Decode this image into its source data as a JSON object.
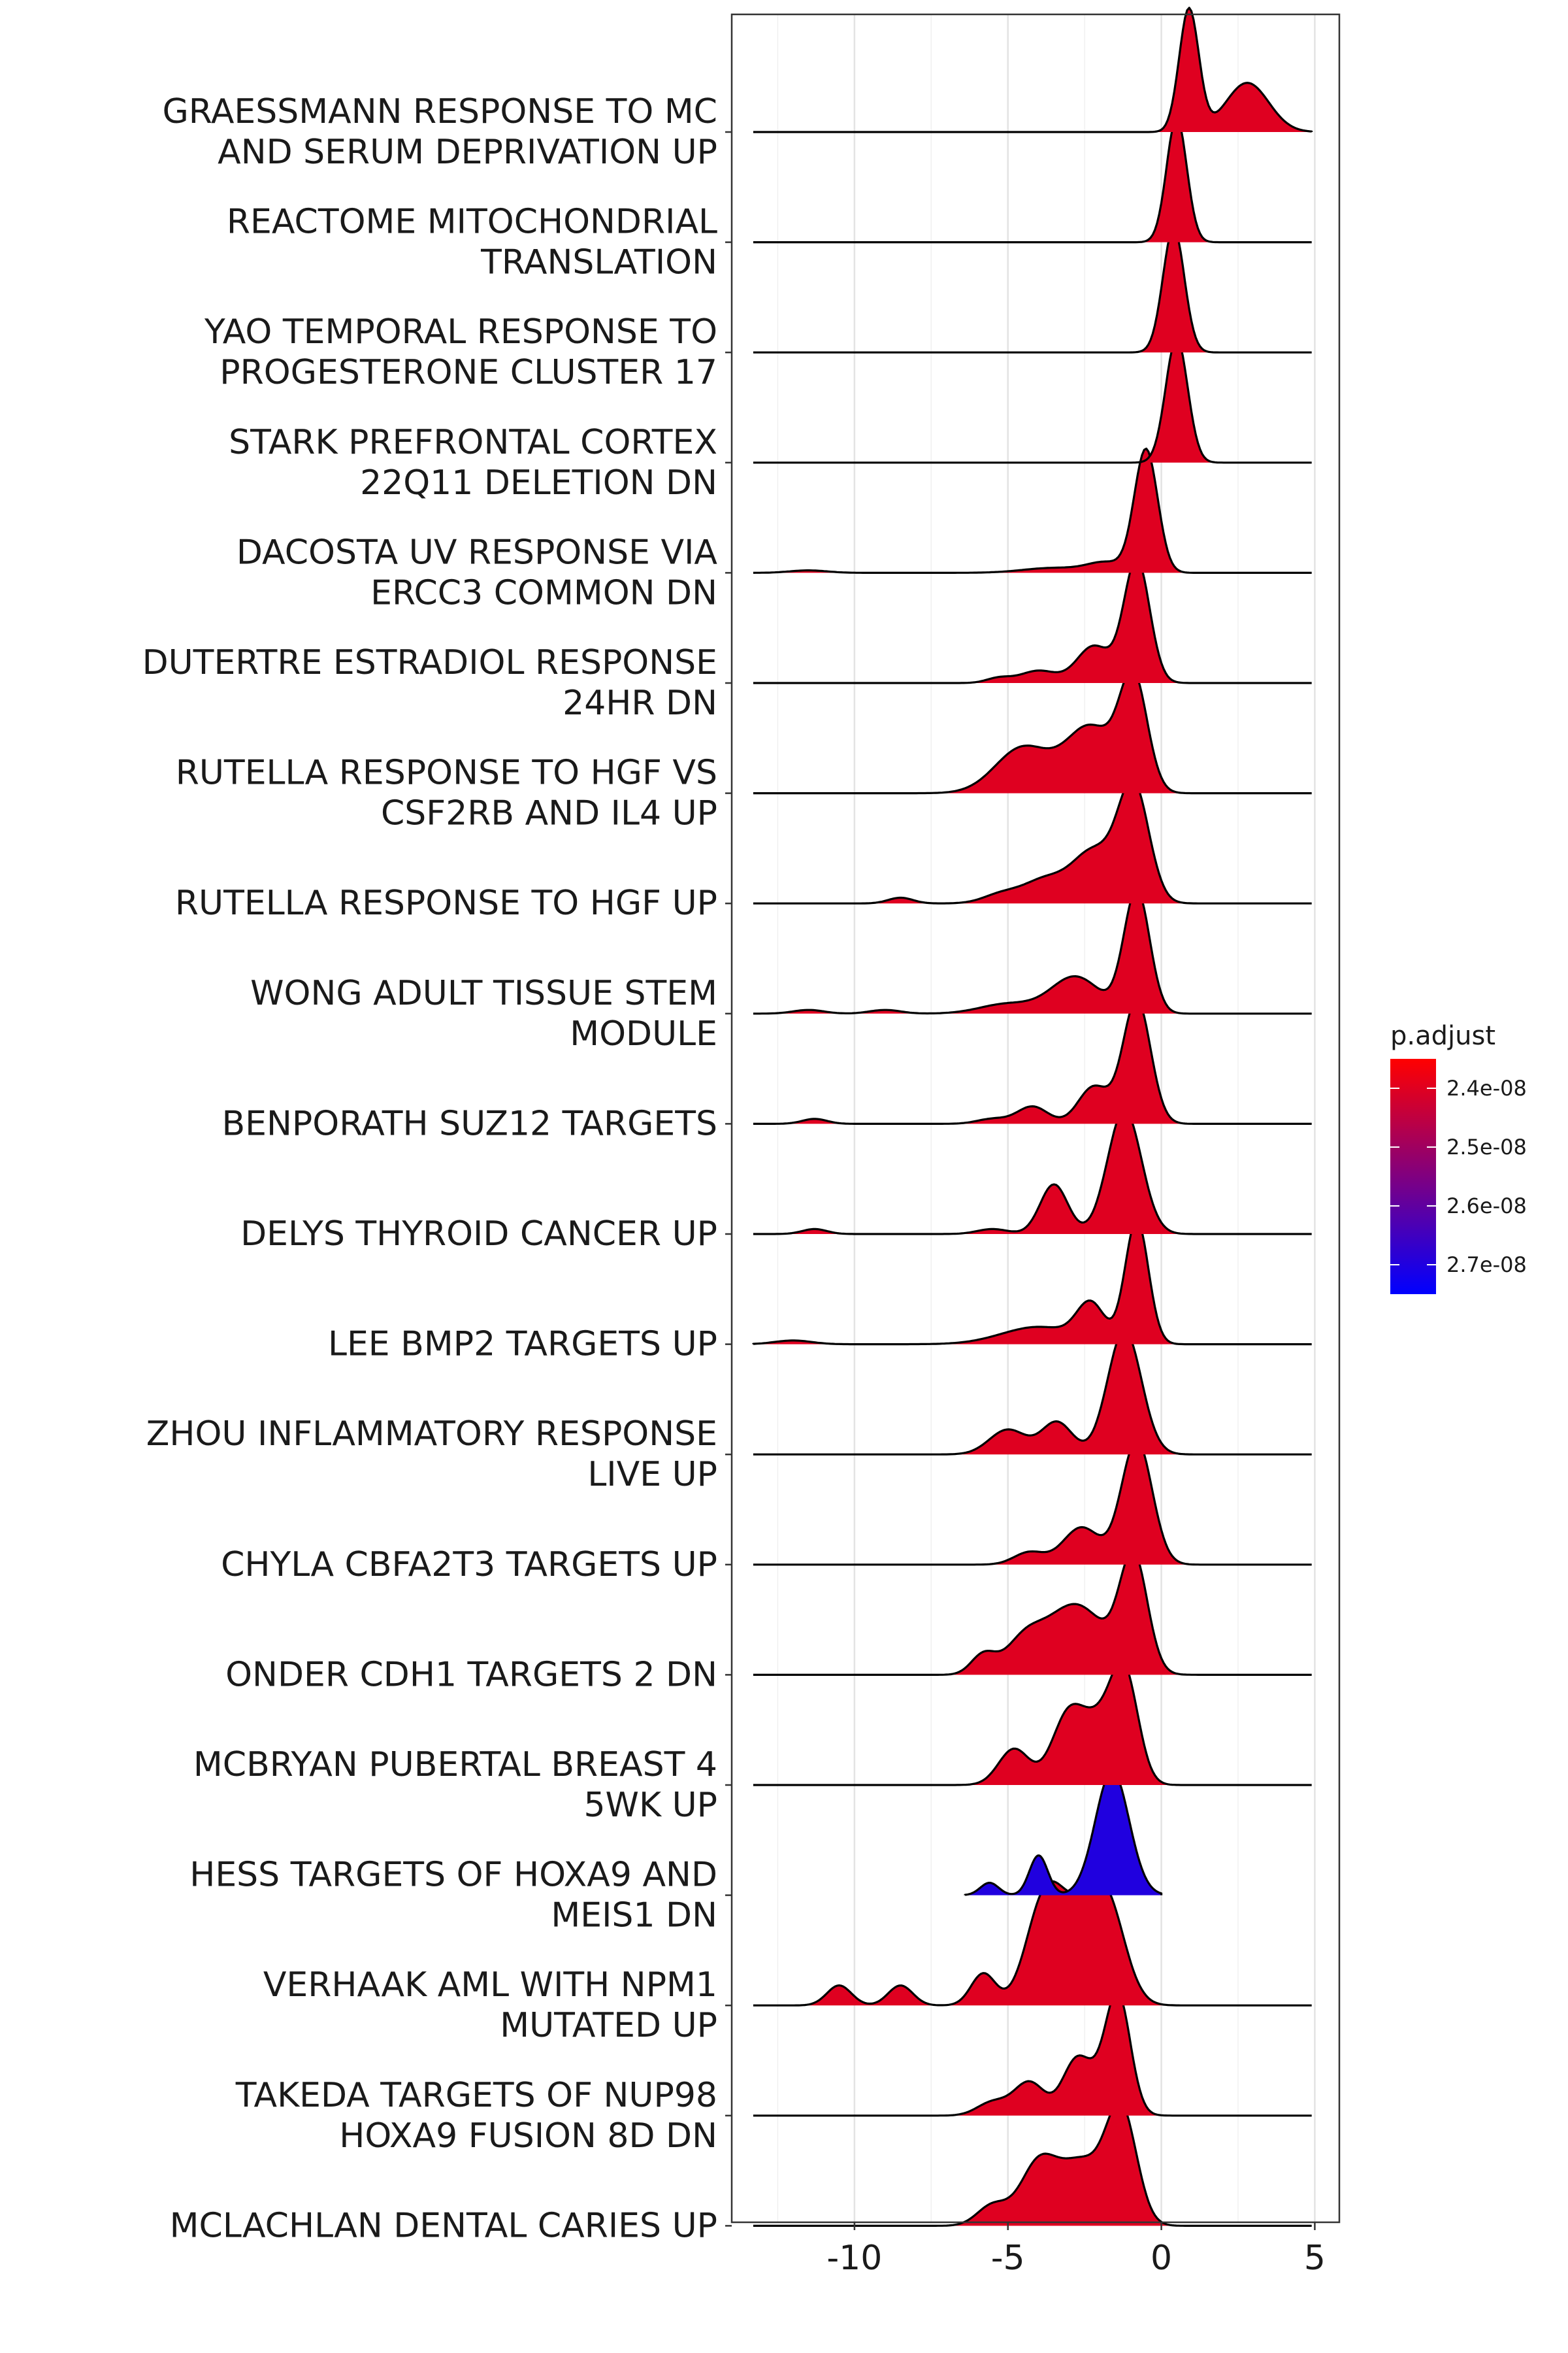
{
  "chart_data": {
    "type": "ridgeline",
    "xlim": [
      -14,
      5.8
    ],
    "x_ticks": [
      -10,
      -5,
      0,
      5
    ],
    "x_tick_labels": [
      "-10",
      "-5",
      "0",
      "5"
    ],
    "grid": "on",
    "legend": {
      "title": "p.adjust",
      "placement": "right",
      "range": [
        2.35e-08,
        2.75e-08
      ],
      "ticks": [
        2.4e-08,
        2.5e-08,
        2.6e-08,
        2.7e-08
      ],
      "tick_labels": [
        "2.4e-08",
        "2.5e-08",
        "2.6e-08",
        "2.7e-08"
      ],
      "colors": {
        "low": "#FF0000",
        "high": "#0000FF"
      }
    },
    "series": [
      {
        "label": "GRAESSMANN RESPONSE TO MC AND SERUM DEPRIVATION UP",
        "p_adjust": 2.4e-08,
        "x_min": -13.3,
        "x_max": 4.9,
        "peaks": [
          [
            0.9,
            0.32,
            1.0
          ],
          [
            2.8,
            0.7,
            0.4
          ]
        ]
      },
      {
        "label": "REACTOME MITOCHONDRIAL TRANSLATION",
        "p_adjust": 2.4e-08,
        "x_min": -13.3,
        "x_max": 4.9,
        "peaks": [
          [
            0.5,
            0.33,
            1.0
          ]
        ]
      },
      {
        "label": "YAO TEMPORAL RESPONSE TO PROGESTERONE CLUSTER 17",
        "p_adjust": 2.4e-08,
        "x_min": -13.3,
        "x_max": 4.9,
        "peaks": [
          [
            0.4,
            0.35,
            1.0
          ]
        ]
      },
      {
        "label": "STARK PREFRONTAL CORTEX 22Q11 DELETION DN",
        "p_adjust": 2.4e-08,
        "x_min": -13.3,
        "x_max": 4.9,
        "peaks": [
          [
            0.5,
            0.36,
            1.0
          ]
        ]
      },
      {
        "label": "DACOSTA UV RESPONSE VIA ERCC3 COMMON DN",
        "p_adjust": 2.4e-08,
        "x_min": -13.3,
        "x_max": 4.9,
        "peaks": [
          [
            -0.5,
            0.38,
            1.0
          ],
          [
            -1.8,
            0.6,
            0.08
          ],
          [
            -3.5,
            1.0,
            0.04
          ],
          [
            -11.5,
            0.6,
            0.02
          ]
        ]
      },
      {
        "label": "DUTERTRE ESTRADIOL RESPONSE 24HR DN",
        "p_adjust": 2.4e-08,
        "x_min": -13.3,
        "x_max": 4.9,
        "peaks": [
          [
            -0.8,
            0.42,
            1.0
          ],
          [
            -2.2,
            0.55,
            0.3
          ],
          [
            -4.0,
            0.6,
            0.1
          ],
          [
            -5.3,
            0.4,
            0.04
          ]
        ]
      },
      {
        "label": "RUTELLA RESPONSE TO HGF VS CSF2RB AND IL4 UP",
        "p_adjust": 2.4e-08,
        "x_min": -13.3,
        "x_max": 4.9,
        "peaks": [
          [
            -0.9,
            0.45,
            1.0
          ],
          [
            -2.3,
            0.8,
            0.6
          ],
          [
            -4.5,
            0.9,
            0.42
          ]
        ]
      },
      {
        "label": "RUTELLA RESPONSE TO HGF UP",
        "p_adjust": 2.4e-08,
        "x_min": -13.3,
        "x_max": 4.9,
        "peaks": [
          [
            -0.9,
            0.5,
            1.0
          ],
          [
            -2.2,
            0.7,
            0.45
          ],
          [
            -3.8,
            0.7,
            0.2
          ],
          [
            -5.2,
            0.6,
            0.08
          ],
          [
            -8.5,
            0.4,
            0.05
          ]
        ]
      },
      {
        "label": "WONG ADULT TISSUE STEM MODULE",
        "p_adjust": 2.4e-08,
        "x_min": -13.3,
        "x_max": 4.9,
        "peaks": [
          [
            -0.8,
            0.42,
            1.0
          ],
          [
            -2.8,
            0.8,
            0.3
          ],
          [
            -5.0,
            0.9,
            0.08
          ],
          [
            -9.0,
            0.5,
            0.03
          ],
          [
            -11.5,
            0.5,
            0.03
          ]
        ]
      },
      {
        "label": "BENPORATH SUZ12 TARGETS",
        "p_adjust": 2.4e-08,
        "x_min": -13.3,
        "x_max": 4.9,
        "peaks": [
          [
            -0.8,
            0.45,
            1.0
          ],
          [
            -2.2,
            0.5,
            0.3
          ],
          [
            -4.2,
            0.5,
            0.14
          ],
          [
            -5.5,
            0.5,
            0.04
          ],
          [
            -11.3,
            0.4,
            0.04
          ]
        ]
      },
      {
        "label": "DELYS THYROID CANCER UP",
        "p_adjust": 2.4e-08,
        "x_min": -13.3,
        "x_max": 4.9,
        "peaks": [
          [
            -1.2,
            0.55,
            1.0
          ],
          [
            -3.5,
            0.45,
            0.4
          ],
          [
            -5.5,
            0.5,
            0.04
          ],
          [
            -11.3,
            0.4,
            0.04
          ]
        ]
      },
      {
        "label": "LEE BMP2 TARGETS UP",
        "p_adjust": 2.4e-08,
        "x_min": -13.3,
        "x_max": 4.9,
        "peaks": [
          [
            -0.8,
            0.38,
            1.0
          ],
          [
            -2.3,
            0.45,
            0.3
          ],
          [
            -4.0,
            1.2,
            0.14
          ],
          [
            -12.0,
            0.6,
            0.03
          ]
        ]
      },
      {
        "label": "ZHOU INFLAMMATORY RESPONSE LIVE UP",
        "p_adjust": 2.4e-08,
        "x_min": -13.3,
        "x_max": 4.9,
        "peaks": [
          [
            -1.2,
            0.55,
            1.0
          ],
          [
            -3.4,
            0.5,
            0.26
          ],
          [
            -5.0,
            0.6,
            0.2
          ]
        ]
      },
      {
        "label": "CHYLA CBFA2T3 TARGETS UP",
        "p_adjust": 2.4e-08,
        "x_min": -13.3,
        "x_max": 4.9,
        "peaks": [
          [
            -0.8,
            0.5,
            1.0
          ],
          [
            -2.6,
            0.6,
            0.3
          ],
          [
            -4.3,
            0.5,
            0.1
          ]
        ]
      },
      {
        "label": "ONDER CDH1 TARGETS 2 DN",
        "p_adjust": 2.4e-08,
        "x_min": -13.3,
        "x_max": 4.9,
        "peaks": [
          [
            -0.9,
            0.45,
            0.8
          ],
          [
            -2.8,
            1.0,
            0.5
          ],
          [
            -4.5,
            0.6,
            0.2
          ],
          [
            -5.8,
            0.4,
            0.14
          ]
        ]
      },
      {
        "label": "MCBRYAN PUBERTAL BREAST 4 5WK UP",
        "p_adjust": 2.4e-08,
        "x_min": -13.3,
        "x_max": 4.9,
        "peaks": [
          [
            -1.2,
            0.45,
            0.9
          ],
          [
            -3.0,
            0.55,
            0.6
          ],
          [
            -2.0,
            0.5,
            0.4
          ],
          [
            -4.8,
            0.5,
            0.3
          ]
        ]
      },
      {
        "label": "HESS TARGETS OF HOXA9 AND MEIS1 DN",
        "p_adjust": 2.7e-08,
        "x_min": -6.4,
        "x_max": 0.0,
        "peaks": [
          [
            -1.6,
            0.55,
            1.0
          ],
          [
            -4.0,
            0.3,
            0.32
          ],
          [
            -5.6,
            0.3,
            0.1
          ]
        ]
      },
      {
        "label": "VERHAAK AML WITH NPM1 MUTATED UP",
        "p_adjust": 2.4e-08,
        "x_min": -13.3,
        "x_max": 4.9,
        "peaks": [
          [
            -3.8,
            0.6,
            0.52
          ],
          [
            -1.8,
            0.6,
            0.52
          ],
          [
            -2.8,
            0.6,
            0.3
          ],
          [
            -5.8,
            0.4,
            0.16
          ],
          [
            -8.5,
            0.4,
            0.1
          ],
          [
            -10.5,
            0.4,
            0.1
          ]
        ]
      },
      {
        "label": "TAKEDA TARGETS OF NUP98 HOXA9 FUSION 8D DN",
        "p_adjust": 2.4e-08,
        "x_min": -13.3,
        "x_max": 4.9,
        "peaks": [
          [
            -1.4,
            0.4,
            0.8
          ],
          [
            -2.8,
            0.45,
            0.35
          ],
          [
            -4.3,
            0.5,
            0.25
          ],
          [
            -5.5,
            0.5,
            0.1
          ],
          [
            -2.0,
            0.6,
            0.2
          ]
        ]
      },
      {
        "label": "MCLACHLAN DENTAL CARIES UP",
        "p_adjust": 2.4e-08,
        "x_min": -13.3,
        "x_max": 4.9,
        "peaks": [
          [
            -1.3,
            0.5,
            0.55
          ],
          [
            -2.6,
            0.7,
            0.3
          ],
          [
            -4.0,
            0.6,
            0.3
          ],
          [
            -5.5,
            0.5,
            0.1
          ]
        ]
      }
    ]
  }
}
